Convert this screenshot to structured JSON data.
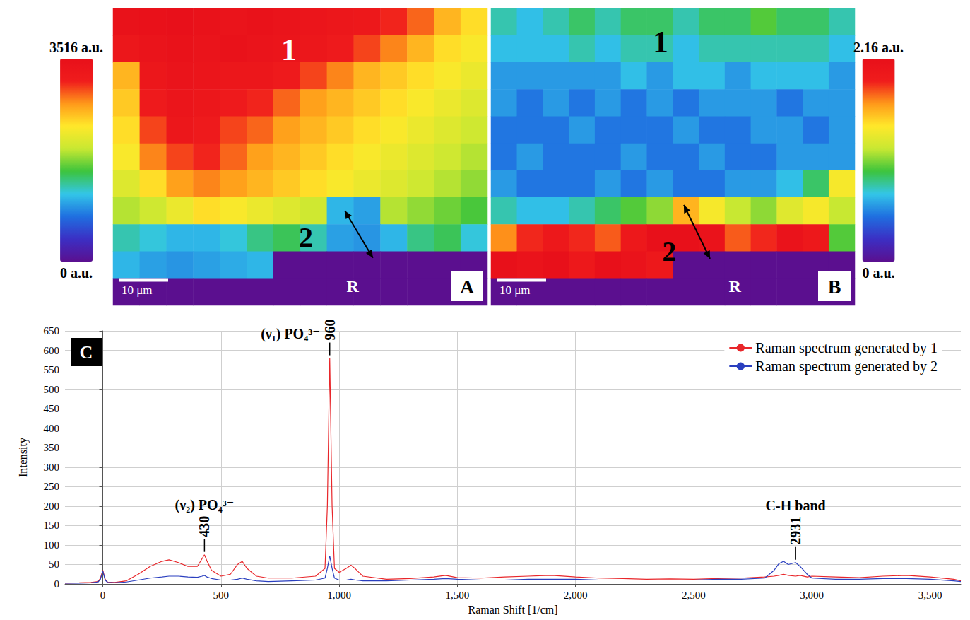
{
  "chart_data": [
    {
      "type": "heatmap",
      "panel": "A",
      "annotations": [
        "1",
        "2",
        "R"
      ],
      "scale_bar": "10 μm",
      "tick_labels": false,
      "cells": [
        [
          3450,
          3480,
          3500,
          3450,
          3400,
          3450,
          3400,
          3350,
          3300,
          3250,
          3100,
          2900,
          2600,
          2400
        ],
        [
          3300,
          3400,
          3450,
          3400,
          3450,
          3400,
          3350,
          3300,
          3200,
          3000,
          2800,
          2600,
          2400,
          2300
        ],
        [
          2600,
          3300,
          3400,
          3350,
          3300,
          3300,
          3200,
          3000,
          2800,
          2600,
          2500,
          2400,
          2300,
          2200
        ],
        [
          2500,
          3200,
          3350,
          3300,
          3200,
          3100,
          2900,
          2700,
          2600,
          2500,
          2400,
          2300,
          2200,
          2100
        ],
        [
          2400,
          3000,
          3300,
          3200,
          3000,
          2900,
          2700,
          2600,
          2500,
          2400,
          2300,
          2200,
          2100,
          2000
        ],
        [
          2300,
          2800,
          3000,
          3100,
          2900,
          2700,
          2600,
          2500,
          2400,
          2300,
          2200,
          2100,
          2000,
          1900
        ],
        [
          2100,
          2400,
          2700,
          2800,
          2700,
          2600,
          2500,
          2400,
          2300,
          2200,
          2100,
          2000,
          1900,
          1800
        ],
        [
          1900,
          2000,
          2200,
          2400,
          2300,
          2200,
          2100,
          2000,
          1100,
          1000,
          1900,
          1800,
          1700,
          1600
        ],
        [
          1300,
          1200,
          1100,
          1100,
          1200,
          1400,
          1500,
          1300,
          1000,
          950,
          1100,
          1400,
          1500,
          1200
        ],
        [
          1100,
          1000,
          950,
          1000,
          1050,
          1100,
          0,
          0,
          0,
          0,
          0,
          0,
          0,
          0
        ],
        [
          0,
          0,
          0,
          0,
          0,
          0,
          0,
          0,
          0,
          0,
          0,
          0,
          0,
          0
        ]
      ],
      "colorbar": {
        "range": [
          0,
          3516
        ],
        "ticks": [
          {
            "value": 0,
            "label": "0 a.u."
          },
          {
            "value": 3516,
            "label": "3516 a.u."
          }
        ]
      }
    },
    {
      "type": "heatmap",
      "panel": "B",
      "annotations": [
        "1",
        "2",
        "R"
      ],
      "scale_bar": "10 μm",
      "tick_labels": false,
      "cells": [
        [
          0.8,
          0.7,
          0.8,
          0.9,
          0.8,
          0.9,
          0.9,
          0.8,
          0.9,
          0.9,
          1.0,
          0.9,
          0.9,
          0.8
        ],
        [
          0.7,
          0.7,
          0.7,
          0.8,
          0.7,
          0.8,
          0.8,
          0.7,
          0.8,
          0.8,
          0.8,
          0.8,
          0.8,
          0.7
        ],
        [
          0.6,
          0.6,
          0.6,
          0.6,
          0.6,
          0.7,
          0.6,
          0.7,
          0.7,
          0.6,
          0.7,
          0.7,
          0.7,
          0.6
        ],
        [
          0.6,
          0.5,
          0.6,
          0.5,
          0.6,
          0.5,
          0.6,
          0.5,
          0.6,
          0.6,
          0.6,
          0.5,
          0.6,
          0.6
        ],
        [
          0.5,
          0.5,
          0.5,
          0.6,
          0.5,
          0.5,
          0.5,
          0.6,
          0.5,
          0.5,
          0.6,
          0.6,
          0.5,
          0.6
        ],
        [
          0.5,
          0.6,
          0.5,
          0.5,
          0.5,
          0.6,
          0.5,
          0.5,
          0.6,
          0.5,
          0.5,
          0.6,
          0.6,
          0.6
        ],
        [
          0.6,
          0.5,
          0.5,
          0.5,
          0.6,
          0.5,
          0.6,
          0.5,
          0.5,
          0.6,
          0.6,
          0.7,
          0.9,
          1.4
        ],
        [
          0.8,
          0.7,
          0.7,
          0.8,
          0.9,
          1.0,
          1.1,
          1.6,
          1.4,
          1.2,
          1.1,
          1.3,
          1.4,
          1.2
        ],
        [
          1.7,
          1.9,
          2.0,
          1.9,
          1.8,
          2.0,
          2.16,
          2.16,
          2.1,
          1.8,
          1.9,
          2.1,
          2.0,
          1.0
        ],
        [
          2.16,
          2.1,
          2.16,
          2.0,
          2.16,
          2.1,
          2.0,
          0,
          0,
          0,
          0,
          0,
          0,
          0
        ],
        [
          0,
          0,
          0,
          0,
          0,
          0,
          0,
          0,
          0,
          0,
          0,
          0,
          0,
          0
        ]
      ],
      "colorbar": {
        "range": [
          0,
          2.16
        ],
        "ticks": [
          {
            "value": 0,
            "label": "0 a.u."
          },
          {
            "value": 2.16,
            "label": "2.16 a.u."
          }
        ]
      }
    },
    {
      "type": "line",
      "panel": "C",
      "xlabel": "Raman Shift [1/cm]",
      "ylabel": "Intensity",
      "x": [
        -160,
        -100,
        -50,
        -20,
        -10,
        0,
        10,
        20,
        50,
        100,
        150,
        200,
        250,
        280,
        320,
        360,
        400,
        420,
        430,
        440,
        460,
        500,
        540,
        570,
        590,
        610,
        650,
        700,
        800,
        900,
        940,
        950,
        960,
        970,
        980,
        1000,
        1030,
        1050,
        1070,
        1100,
        1200,
        1300,
        1400,
        1450,
        1500,
        1600,
        1700,
        1800,
        1900,
        2000,
        2100,
        2200,
        2300,
        2400,
        2500,
        2600,
        2700,
        2800,
        2840,
        2860,
        2880,
        2900,
        2931,
        2950,
        2980,
        3000,
        3100,
        3200,
        3300,
        3400,
        3500,
        3600,
        3630
      ],
      "series": [
        {
          "name": "Raman spectrum generated by 1",
          "color": "#e8262a",
          "values": [
            2,
            3,
            4,
            6,
            15,
            35,
            12,
            5,
            4,
            8,
            25,
            45,
            58,
            62,
            55,
            45,
            45,
            65,
            75,
            60,
            35,
            20,
            25,
            50,
            58,
            40,
            20,
            15,
            15,
            20,
            40,
            200,
            580,
            200,
            40,
            30,
            40,
            48,
            38,
            20,
            12,
            14,
            18,
            22,
            16,
            15,
            18,
            20,
            22,
            18,
            15,
            14,
            12,
            13,
            12,
            14,
            15,
            18,
            20,
            22,
            25,
            22,
            20,
            22,
            18,
            20,
            18,
            16,
            20,
            22,
            18,
            12,
            8
          ]
        },
        {
          "name": "Raman spectrum generated by 2",
          "color": "#2a3fbf",
          "values": [
            2,
            2,
            3,
            5,
            12,
            33,
            10,
            4,
            3,
            5,
            10,
            15,
            18,
            20,
            20,
            18,
            17,
            20,
            22,
            18,
            14,
            10,
            10,
            12,
            15,
            12,
            8,
            6,
            8,
            10,
            15,
            40,
            72,
            40,
            15,
            10,
            10,
            12,
            10,
            8,
            8,
            10,
            12,
            14,
            12,
            10,
            10,
            12,
            12,
            12,
            10,
            10,
            10,
            10,
            10,
            12,
            12,
            15,
            35,
            52,
            58,
            50,
            55,
            45,
            25,
            15,
            12,
            12,
            14,
            14,
            12,
            8,
            6
          ]
        }
      ],
      "xlim": [
        -160,
        3630
      ],
      "xticks": [
        0,
        500,
        1000,
        1500,
        2000,
        2500,
        3000,
        3500
      ],
      "ylim": [
        0,
        650
      ],
      "yticks": [
        0,
        50,
        100,
        150,
        200,
        250,
        300,
        350,
        400,
        450,
        500,
        550,
        600,
        650
      ],
      "grid": true,
      "legend": "upper right",
      "annotations": [
        {
          "text": "(ν₂) PO₄³⁻",
          "x": 430
        },
        {
          "text": "(ν₁) PO₄³⁻",
          "x": 960
        },
        {
          "text": "C-H band",
          "x": 2931
        }
      ]
    }
  ]
}
